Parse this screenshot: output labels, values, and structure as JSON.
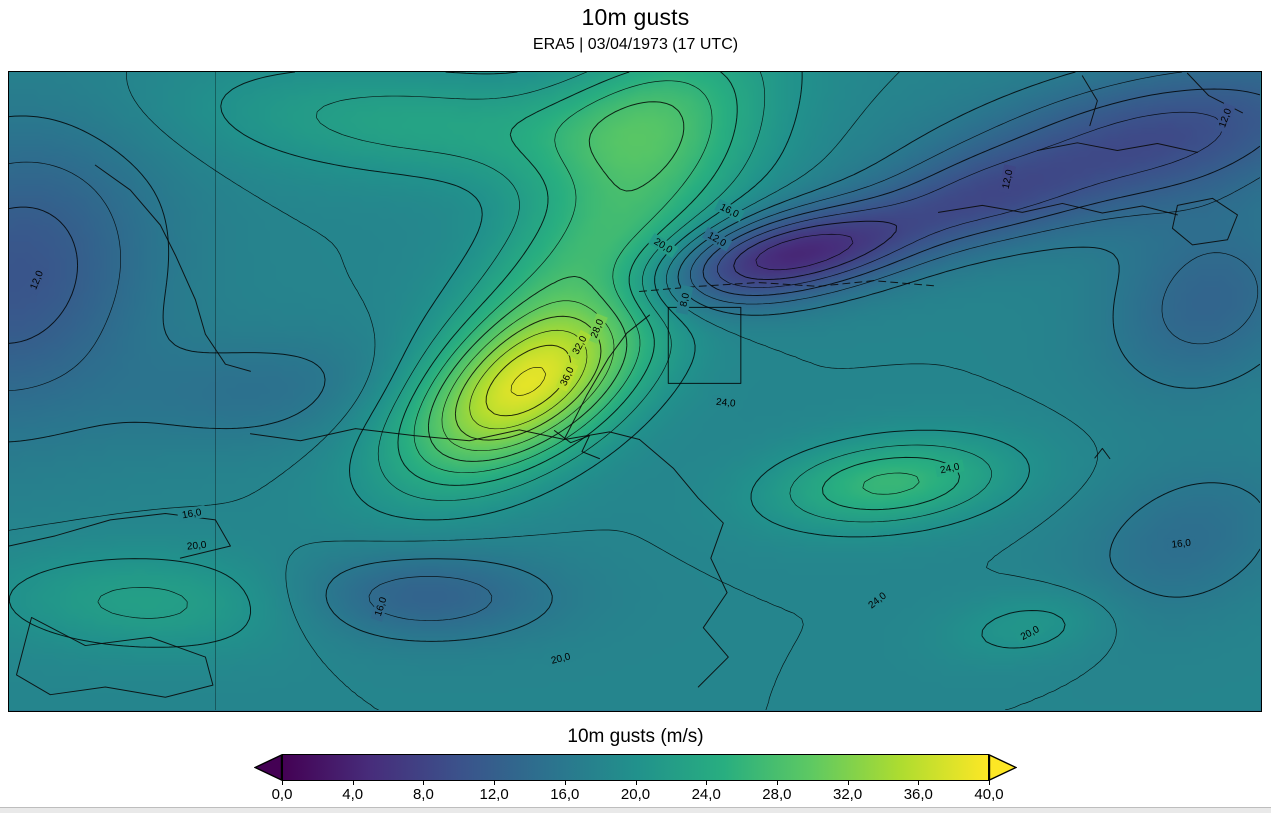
{
  "header": {
    "title": "10m gusts",
    "subtitle": "ERA5 | 03/04/1973 (17 UTC)"
  },
  "colorbar": {
    "title": "10m gusts (m/s)",
    "min": 0,
    "max": 40,
    "tick_labels": [
      "0,0",
      "4,0",
      "8,0",
      "12,0",
      "16,0",
      "20,0",
      "24,0",
      "28,0",
      "32,0",
      "36,0",
      "40,0"
    ],
    "under_color": "#440154",
    "over_color": "#fde725",
    "stops": [
      {
        "p": 0.0,
        "c": "#440154"
      },
      {
        "p": 0.125,
        "c": "#472d7b"
      },
      {
        "p": 0.25,
        "c": "#3b528b"
      },
      {
        "p": 0.375,
        "c": "#2c728e"
      },
      {
        "p": 0.5,
        "c": "#21918c"
      },
      {
        "p": 0.625,
        "c": "#28ae80"
      },
      {
        "p": 0.75,
        "c": "#5ec962"
      },
      {
        "p": 0.875,
        "c": "#addc30"
      },
      {
        "p": 1.0,
        "c": "#fde725"
      }
    ]
  },
  "chart_data": {
    "type": "heatmap",
    "subtype": "filled_contour_map",
    "title": "10m gusts",
    "subtitle": "ERA5 | 03/04/1973 (17 UTC)",
    "units": "m/s",
    "colormap": "viridis",
    "value_range": [
      0,
      40
    ],
    "colorbar_ticks": [
      0,
      4,
      8,
      12,
      16,
      20,
      24,
      28,
      32,
      36,
      40
    ],
    "contour_levels": {
      "min": 4,
      "max": 38,
      "step": 2
    },
    "labeled_levels": [
      8,
      12,
      16,
      20,
      24,
      28,
      32,
      36
    ],
    "meridian_x": 0.165,
    "field": {
      "base": 18,
      "features": [
        {
          "name": "main-gust-maximum",
          "x": 0.412,
          "y": 0.5,
          "amp": 17,
          "rot": -63,
          "su": 0.105,
          "sv": 0.052
        },
        {
          "name": "gust-ridge-ne",
          "x": 0.48,
          "y": 0.25,
          "amp": 9,
          "rot": -70,
          "su": 0.19,
          "sv": 0.055
        },
        {
          "name": "calm-minimum",
          "x": 0.623,
          "y": 0.287,
          "amp": -13.5,
          "rot": -27,
          "su": 0.085,
          "sv": 0.043
        },
        {
          "name": "topright-dark",
          "x": 0.91,
          "y": 0.107,
          "amp": -9,
          "rot": -30,
          "su": 0.13,
          "sv": 0.07
        },
        {
          "name": "right-edge-dark",
          "x": 0.96,
          "y": 0.36,
          "amp": -5,
          "rot": -80,
          "su": 0.1,
          "sv": 0.055
        },
        {
          "name": "left-edge-dark",
          "x": 0.004,
          "y": 0.318,
          "amp": -7.5,
          "rot": -85,
          "su": 0.16,
          "sv": 0.075
        },
        {
          "name": "secondary-maximum",
          "x": 0.705,
          "y": 0.645,
          "amp": 8.5,
          "rot": -20,
          "su": 0.068,
          "sv": 0.046
        },
        {
          "name": "bottom-minimum",
          "x": 0.328,
          "y": 0.824,
          "amp": -5.5,
          "rot": 0,
          "su": 0.075,
          "sv": 0.05
        },
        {
          "name": "bottomleft-green",
          "x": 0.113,
          "y": 0.832,
          "amp": 4.5,
          "rot": 5,
          "su": 0.09,
          "sv": 0.055
        },
        {
          "name": "rightbottom-dip",
          "x": 0.942,
          "y": 0.738,
          "amp": -3.5,
          "rot": -70,
          "su": 0.09,
          "sv": 0.055
        },
        {
          "name": "bottomright-bump",
          "x": 0.818,
          "y": 0.87,
          "amp": 3,
          "rot": -30,
          "su": 0.05,
          "sv": 0.035
        },
        {
          "name": "topleft-green",
          "x": 0.33,
          "y": 0.08,
          "amp": 5,
          "rot": 10,
          "su": 0.13,
          "sv": 0.06
        },
        {
          "name": "topcenter-bump",
          "x": 0.5,
          "y": 0.05,
          "amp": 5,
          "rot": -60,
          "su": 0.08,
          "sv": 0.05
        },
        {
          "name": "mid-dark-link",
          "x": 0.78,
          "y": 0.195,
          "amp": -4,
          "rot": -30,
          "su": 0.06,
          "sv": 0.045
        },
        {
          "name": "midleft-dip",
          "x": 0.2,
          "y": 0.5,
          "amp": -3,
          "rot": -20,
          "su": 0.08,
          "sv": 0.06
        }
      ]
    },
    "contour_labels": [
      {
        "text": "12,0",
        "x": 0.022,
        "y": 0.326,
        "rot": -68
      },
      {
        "text": "16,0",
        "x": 0.146,
        "y": 0.692,
        "rot": -10
      },
      {
        "text": "20,0",
        "x": 0.15,
        "y": 0.742,
        "rot": -6
      },
      {
        "text": "28,0",
        "x": 0.47,
        "y": 0.402,
        "rot": -68
      },
      {
        "text": "32,0",
        "x": 0.456,
        "y": 0.428,
        "rot": -62
      },
      {
        "text": "36,0",
        "x": 0.446,
        "y": 0.477,
        "rot": -65
      },
      {
        "text": "20,0",
        "x": 0.523,
        "y": 0.272,
        "rot": 32
      },
      {
        "text": "16,0",
        "x": 0.576,
        "y": 0.217,
        "rot": 26
      },
      {
        "text": "12,0",
        "x": 0.566,
        "y": 0.262,
        "rot": 30
      },
      {
        "text": "8,0",
        "x": 0.54,
        "y": 0.357,
        "rot": -78
      },
      {
        "text": "24,0",
        "x": 0.573,
        "y": 0.518,
        "rot": 6
      },
      {
        "text": "24,0",
        "x": 0.752,
        "y": 0.621,
        "rot": -12
      },
      {
        "text": "16,0",
        "x": 0.297,
        "y": 0.838,
        "rot": -72
      },
      {
        "text": "20,0",
        "x": 0.441,
        "y": 0.919,
        "rot": -14
      },
      {
        "text": "24,0",
        "x": 0.694,
        "y": 0.828,
        "rot": -38
      },
      {
        "text": "20,0",
        "x": 0.816,
        "y": 0.879,
        "rot": -28
      },
      {
        "text": "16,0",
        "x": 0.937,
        "y": 0.739,
        "rot": -6
      },
      {
        "text": "12,0",
        "x": 0.972,
        "y": 0.072,
        "rot": -70
      },
      {
        "text": "12,0",
        "x": 0.798,
        "y": 0.168,
        "rot": -78
      }
    ],
    "region_box": {
      "x1": 0.527,
      "y1": 0.369,
      "x2": 0.585,
      "y2": 0.488
    },
    "coastlines": [
      {
        "name": "border-topleft",
        "points": [
          [
            0.069,
            0.146
          ],
          [
            0.097,
            0.185
          ],
          [
            0.121,
            0.24
          ],
          [
            0.133,
            0.287
          ],
          [
            0.149,
            0.357
          ],
          [
            0.157,
            0.411
          ],
          [
            0.173,
            0.458
          ],
          [
            0.193,
            0.469
          ]
        ]
      },
      {
        "name": "coast-central",
        "points": [
          [
            0.193,
            0.567
          ],
          [
            0.233,
            0.578
          ],
          [
            0.277,
            0.559
          ],
          [
            0.324,
            0.57
          ],
          [
            0.368,
            0.578
          ],
          [
            0.408,
            0.561
          ],
          [
            0.444,
            0.576
          ],
          [
            0.48,
            0.564
          ],
          [
            0.504,
            0.576
          ]
        ]
      },
      {
        "name": "coast-adriatic",
        "points": [
          [
            0.504,
            0.576
          ],
          [
            0.531,
            0.621
          ],
          [
            0.551,
            0.668
          ],
          [
            0.571,
            0.707
          ],
          [
            0.561,
            0.762
          ],
          [
            0.574,
            0.816
          ],
          [
            0.555,
            0.871
          ],
          [
            0.575,
            0.917
          ],
          [
            0.551,
            0.964
          ]
        ]
      },
      {
        "name": "dashed-track",
        "dash": [
          7,
          5
        ],
        "points": [
          [
            0.504,
            0.344
          ],
          [
            0.551,
            0.336
          ],
          [
            0.599,
            0.33
          ],
          [
            0.647,
            0.336
          ],
          [
            0.691,
            0.327
          ],
          [
            0.739,
            0.335
          ]
        ]
      },
      {
        "name": "coast-norway",
        "points": [
          [
            0.743,
            0.22
          ],
          [
            0.778,
            0.209
          ],
          [
            0.81,
            0.22
          ],
          [
            0.842,
            0.206
          ],
          [
            0.874,
            0.221
          ],
          [
            0.906,
            0.21
          ],
          [
            0.934,
            0.224
          ]
        ]
      },
      {
        "name": "coast-baltic",
        "points": [
          [
            0.822,
            0.123
          ],
          [
            0.854,
            0.111
          ],
          [
            0.886,
            0.123
          ],
          [
            0.918,
            0.112
          ],
          [
            0.95,
            0.126
          ]
        ]
      },
      {
        "name": "island-loop",
        "closed": true,
        "points": [
          [
            0.934,
            0.209
          ],
          [
            0.962,
            0.198
          ],
          [
            0.982,
            0.224
          ],
          [
            0.974,
            0.263
          ],
          [
            0.946,
            0.271
          ],
          [
            0.93,
            0.245
          ]
        ]
      },
      {
        "name": "coast-topright-a",
        "points": [
          [
            0.858,
            0.006
          ],
          [
            0.87,
            0.045
          ],
          [
            0.864,
            0.084
          ]
        ]
      },
      {
        "name": "coast-topright-b",
        "points": [
          [
            0.942,
            0.002
          ],
          [
            0.959,
            0.037
          ],
          [
            0.986,
            0.064
          ]
        ]
      },
      {
        "name": "island-bottomleft",
        "closed": true,
        "points": [
          [
            0.018,
            0.855
          ],
          [
            0.061,
            0.899
          ],
          [
            0.113,
            0.886
          ],
          [
            0.157,
            0.917
          ],
          [
            0.163,
            0.961
          ],
          [
            0.125,
            0.98
          ],
          [
            0.077,
            0.964
          ],
          [
            0.033,
            0.976
          ],
          [
            0.006,
            0.945
          ]
        ]
      },
      {
        "name": "coast-left",
        "points": [
          [
            0.0,
            0.743
          ],
          [
            0.037,
            0.727
          ],
          [
            0.081,
            0.702
          ],
          [
            0.125,
            0.692
          ],
          [
            0.165,
            0.702
          ],
          [
            0.177,
            0.743
          ],
          [
            0.137,
            0.762
          ]
        ]
      },
      {
        "name": "coast-detail",
        "points": [
          [
            0.436,
            0.562
          ],
          [
            0.449,
            0.581
          ],
          [
            0.464,
            0.57
          ],
          [
            0.458,
            0.595
          ],
          [
            0.472,
            0.606
          ]
        ]
      },
      {
        "name": "border-up",
        "points": [
          [
            0.444,
            0.575
          ],
          [
            0.462,
            0.506
          ],
          [
            0.479,
            0.449
          ],
          [
            0.494,
            0.409
          ],
          [
            0.512,
            0.381
          ]
        ]
      },
      {
        "name": "mark-right",
        "points": [
          [
            0.868,
            0.605
          ],
          [
            0.874,
            0.59
          ],
          [
            0.88,
            0.606
          ]
        ]
      }
    ]
  }
}
